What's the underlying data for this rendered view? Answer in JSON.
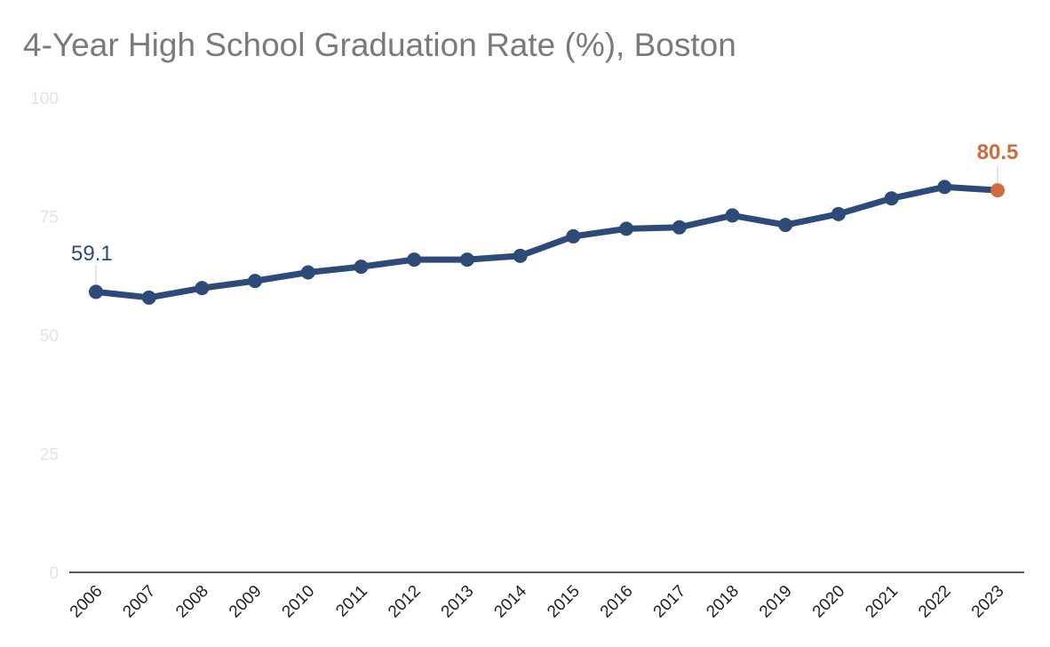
{
  "chart_data": {
    "type": "line",
    "title": "4-Year High School Graduation Rate (%), Boston",
    "xlabel": "",
    "ylabel": "",
    "ylim": [
      0,
      100
    ],
    "yticks": [
      "0",
      "25",
      "50",
      "75",
      "100"
    ],
    "grid": false,
    "legend": "none",
    "x": [
      "2006",
      "2007",
      "2008",
      "2009",
      "2010",
      "2011",
      "2012",
      "2013",
      "2014",
      "2015",
      "2016",
      "2017",
      "2018",
      "2019",
      "2020",
      "2021",
      "2022",
      "2023"
    ],
    "series": [
      {
        "values": [
          59.1,
          57.9,
          59.9,
          61.4,
          63.2,
          64.4,
          65.9,
          65.9,
          66.7,
          70.8,
          72.4,
          72.7,
          75.2,
          73.2,
          75.5,
          78.8,
          81.2,
          80.5
        ]
      }
    ],
    "annotations": [
      {
        "text": "59.1",
        "x": "2006"
      },
      {
        "text": "80.5",
        "x": "2023"
      }
    ],
    "colors": {
      "line": "#2d4a78",
      "highlight": "#d26a3c",
      "title": "#7a7a7a",
      "ytick": "#e3e3e3",
      "xtick": "#222222",
      "axis": "#222222"
    }
  }
}
